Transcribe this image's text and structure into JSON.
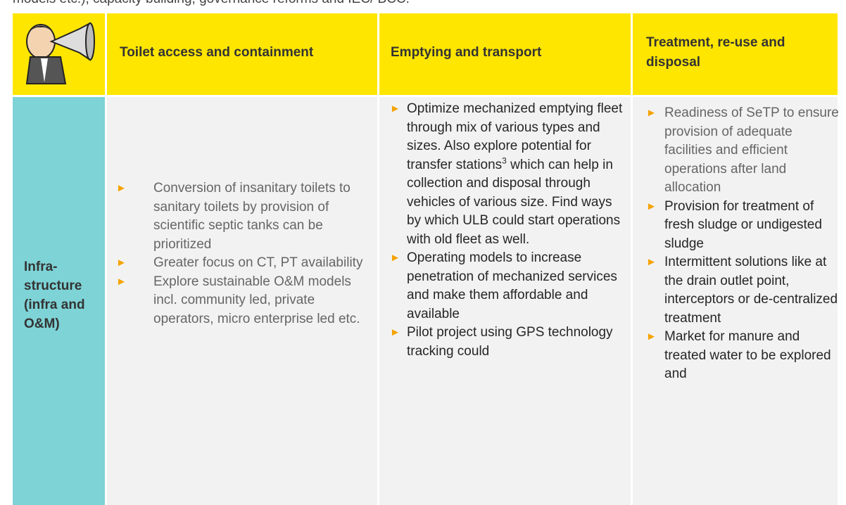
{
  "intro_text": "models etc.), capacity building, governance reforms and IEC/ BCC.",
  "table": {
    "header": [
      "Toilet access and containment",
      "Emptying and transport",
      "Treatment, re-use and disposal"
    ],
    "rows": [
      {
        "label": "Infra-structure (infra and O&M)",
        "cells": [
          [
            "Conversion of insanitary toilets to sanitary toilets by provision of scientific septic tanks can be prioritized",
            "Greater focus on CT, PT availability",
            "Explore sustainable O&M models incl. community led, private operators, micro enterprise led etc."
          ],
          [
            {
              "text": "Optimize mechanized emptying fleet through mix of various types and sizes. Also explore potential for transfer stations",
              "footnote": "3",
              "continuation": " which can help in collection and disposal through vehicles of various size.  Find ways by which ULB could start operations with old fleet as well."
            },
            "Operating models to increase penetration of mechanized services and make them affordable and available",
            "Pilot project using GPS technology tracking could"
          ],
          [
            "Readiness of SeTP to ensure provision of adequate facilities and efficient operations after land allocation",
            "Provision for treatment of fresh sludge or undigested sludge",
            "Intermittent solutions like at the drain outlet point, interceptors or de-centralized treatment",
            "Market for manure and treated water to be explored and"
          ]
        ]
      }
    ]
  }
}
